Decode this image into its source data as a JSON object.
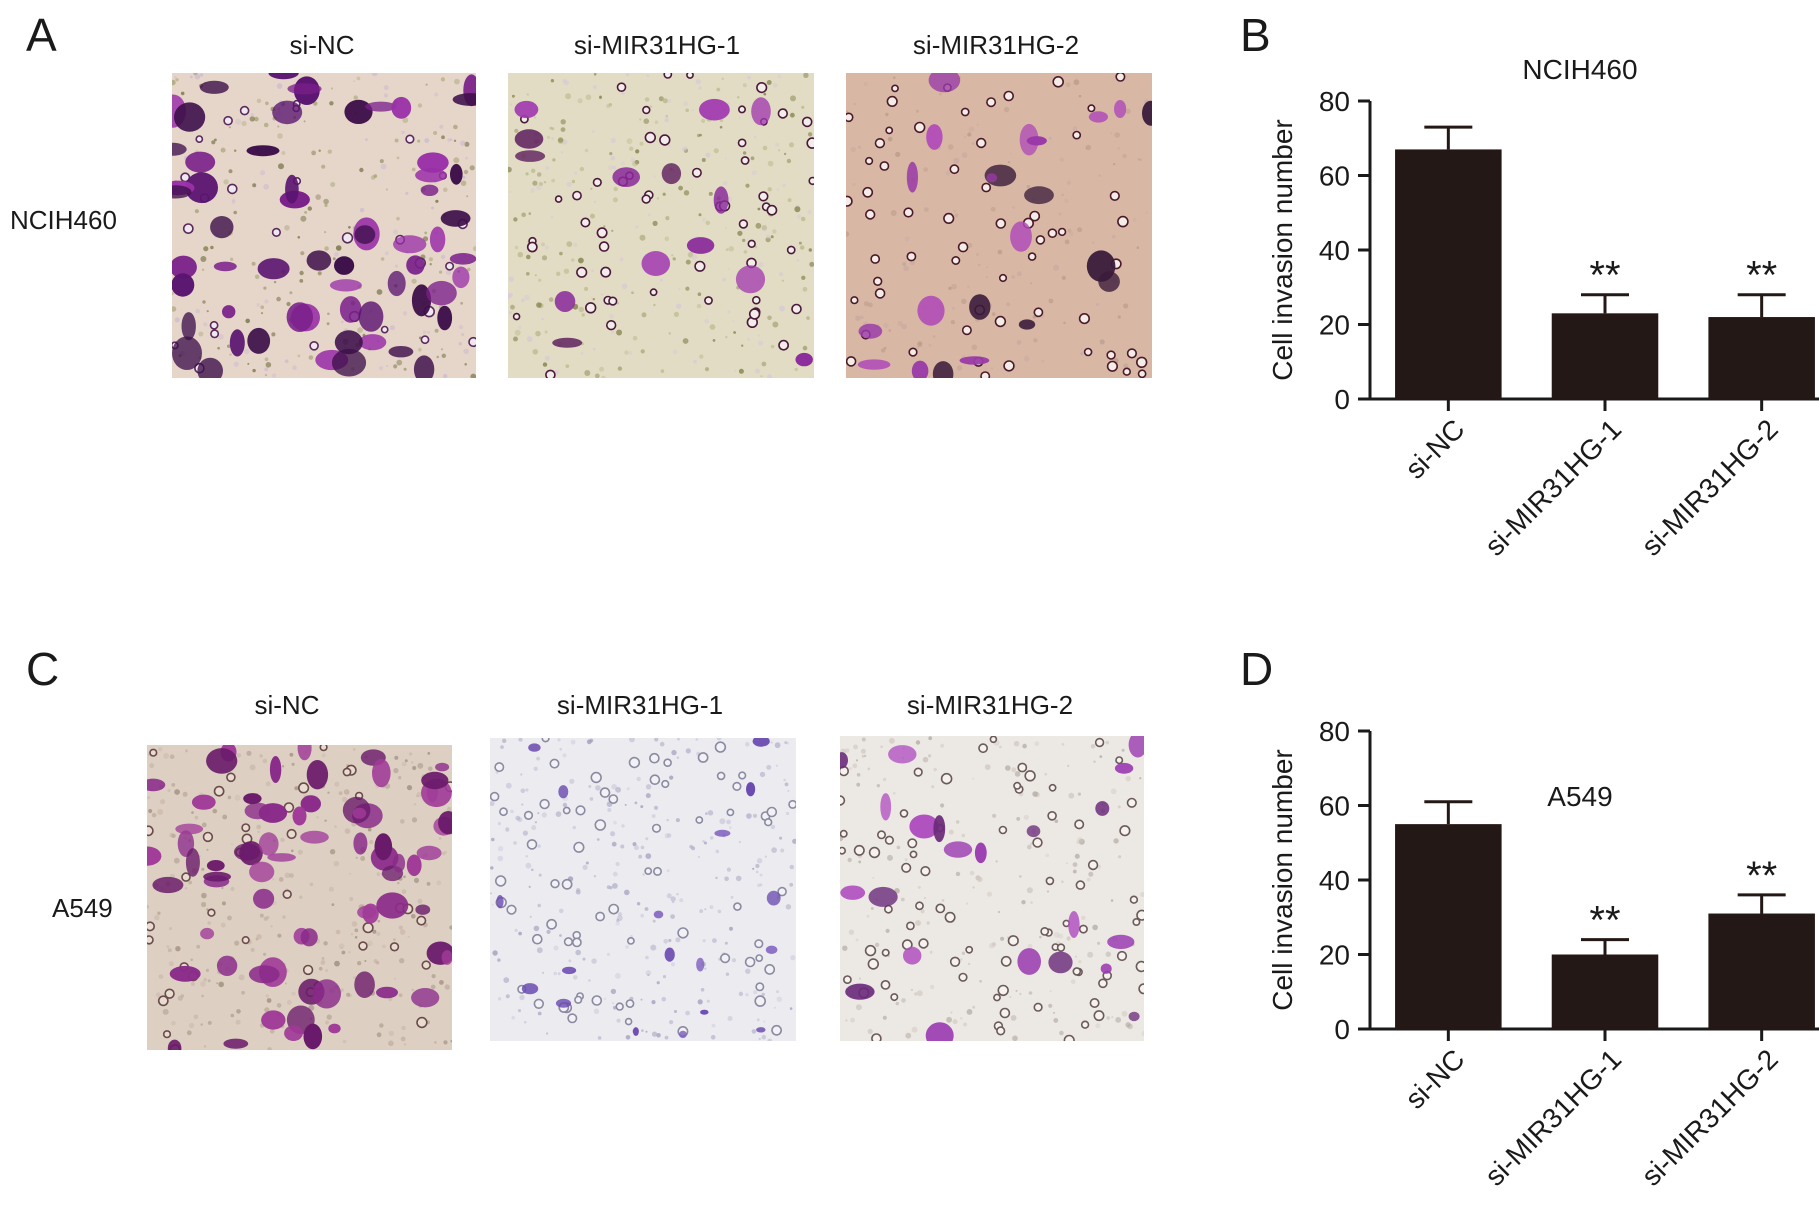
{
  "panels": {
    "a": {
      "letter": "A",
      "row_label": "NCIH460",
      "columns": [
        "si-NC",
        "si-MIR31HG-1",
        "si-MIR31HG-2"
      ]
    },
    "b": {
      "letter": "B"
    },
    "c": {
      "letter": "C",
      "row_label": "A549",
      "columns": [
        "si-NC",
        "si-MIR31HG-1",
        "si-MIR31HG-2"
      ]
    },
    "d": {
      "letter": "D"
    }
  },
  "colors": {
    "bar": "#231815",
    "axis": "#1a1a1a"
  },
  "chart_data": [
    {
      "id": "B",
      "type": "bar",
      "title": "NCIH460",
      "ylabel": "Cell invasion number",
      "xlabel": "",
      "ylim": [
        0,
        80
      ],
      "yticks": [
        0,
        20,
        40,
        60,
        80
      ],
      "categories": [
        "si-NC",
        "si-MIR31HG-1",
        "si-MIR31HG-2"
      ],
      "values": [
        67,
        23,
        22
      ],
      "error": [
        6,
        5,
        6
      ],
      "annotations": [
        "",
        "**",
        "**"
      ],
      "grid": false,
      "legend": "none"
    },
    {
      "id": "D",
      "type": "bar",
      "title": "A549",
      "ylabel": "Cell invasion number",
      "xlabel": "",
      "ylim": [
        0,
        80
      ],
      "yticks": [
        0,
        20,
        40,
        60,
        80
      ],
      "categories": [
        "si-NC",
        "si-MIR31HG-1",
        "si-MIR31HG-2"
      ],
      "values": [
        55,
        20,
        31
      ],
      "error": [
        6,
        4,
        5
      ],
      "annotations": [
        "",
        "**",
        "**"
      ],
      "grid": false,
      "legend": "none"
    }
  ]
}
